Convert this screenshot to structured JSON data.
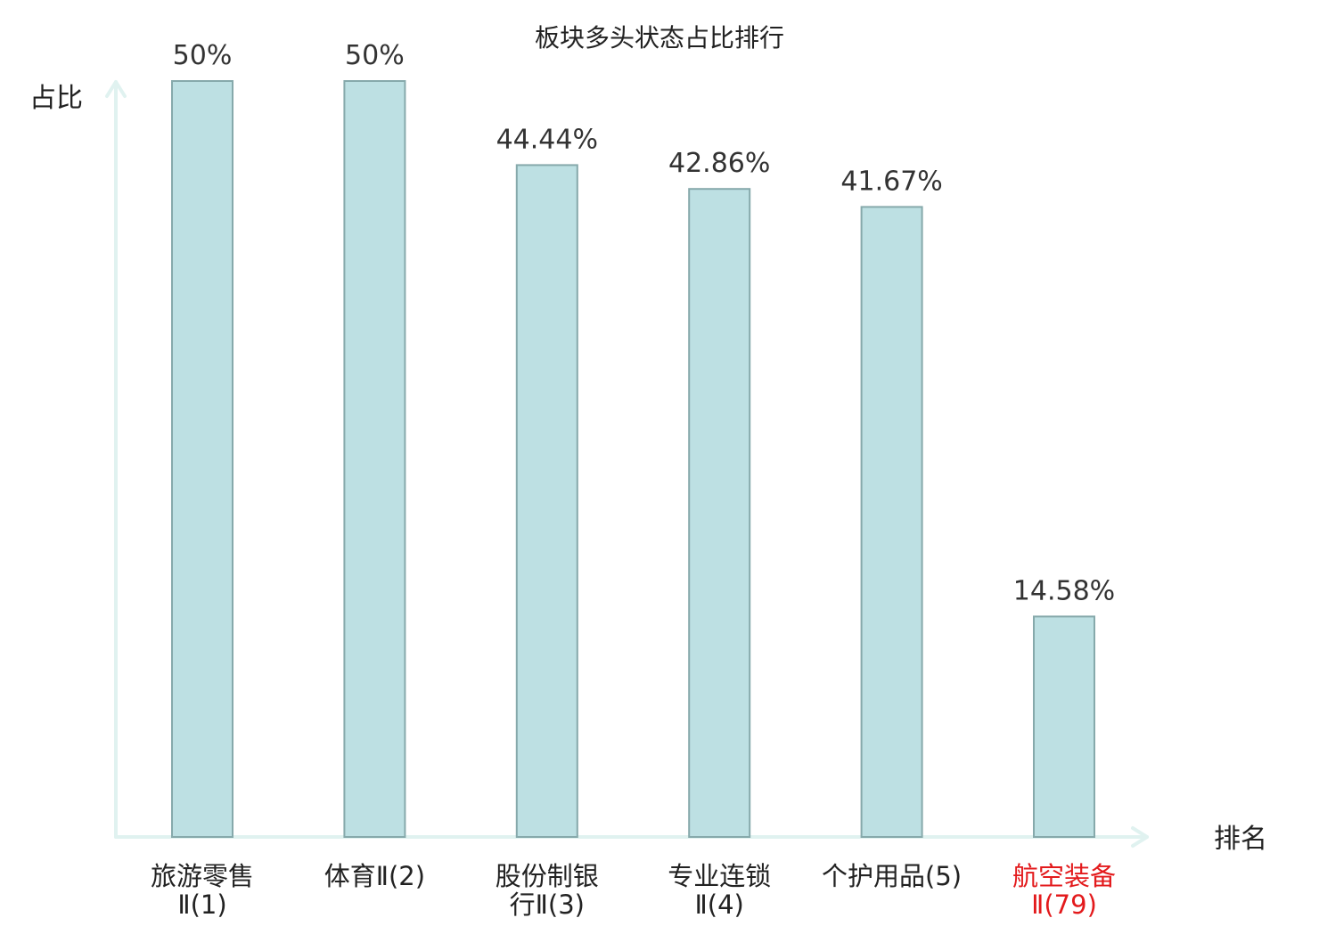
{
  "chart_data": {
    "type": "bar",
    "title": "板块多头状态占比排行",
    "ylabel": "占比",
    "xlabel": "排名",
    "ylim": [
      0,
      50
    ],
    "grid": false,
    "categories": [
      {
        "lines": [
          "旅游零售",
          "Ⅱ(1)"
        ],
        "highlight": false
      },
      {
        "lines": [
          "体育Ⅱ(2)"
        ],
        "highlight": false
      },
      {
        "lines": [
          "股份制银",
          "行Ⅱ(3)"
        ],
        "highlight": false
      },
      {
        "lines": [
          "专业连锁",
          "Ⅱ(4)"
        ],
        "highlight": false
      },
      {
        "lines": [
          "个护用品(5)"
        ],
        "highlight": false
      },
      {
        "lines": [
          "航空装备",
          "Ⅱ(79)"
        ],
        "highlight": true
      }
    ],
    "values": [
      50,
      50,
      44.44,
      42.86,
      41.67,
      14.58
    ],
    "value_labels": [
      "50%",
      "50%",
      "44.44%",
      "42.86%",
      "41.67%",
      "14.58%"
    ],
    "colors": {
      "bar_fill": "#bde0e3",
      "bar_stroke": "#86a9ab",
      "axis": "#e0f2f0",
      "highlight_text": "#e31a1c",
      "normal_text": "#222222"
    }
  }
}
